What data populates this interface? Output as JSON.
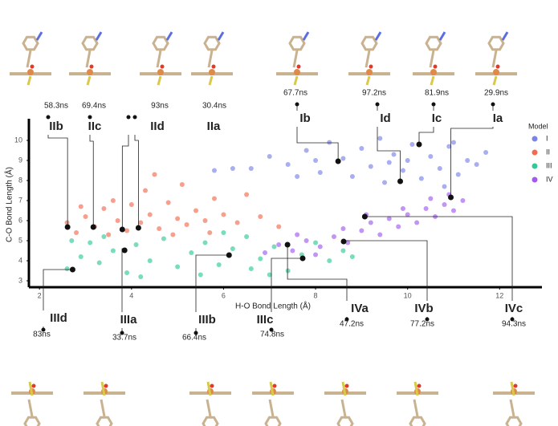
{
  "chart_data": {
    "type": "scatter",
    "x_label": "H-O Bond Length (Å)",
    "y_label": "C-O Bond Length (Å)",
    "xlim": [
      1.77,
      12.78
    ],
    "ylim": [
      2.68,
      11.08
    ],
    "xticks": [
      2,
      4,
      6,
      8,
      10,
      12
    ],
    "yticks": [
      3,
      4,
      5,
      6,
      7,
      8,
      9,
      10
    ],
    "legend_title": "Model",
    "legend_position": "upper right",
    "series": [
      {
        "name": "I",
        "color": "#7b83e8",
        "x": [
          7.0,
          7.4,
          7.8,
          8.1,
          8.3,
          8.6,
          8.8,
          9.0,
          9.2,
          9.4,
          9.5,
          9.7,
          9.9,
          10.1,
          10.3,
          10.5,
          10.7,
          10.9,
          11.1,
          11.3,
          11.5,
          11.7,
          6.6,
          7.6,
          8.0,
          9.6,
          10.0,
          10.8,
          11.0,
          5.8,
          6.2
        ],
        "y": [
          9.2,
          8.8,
          9.5,
          8.4,
          9.9,
          9.1,
          8.2,
          9.6,
          8.7,
          10.1,
          7.9,
          9.3,
          8.5,
          9.8,
          8.1,
          9.2,
          8.6,
          9.7,
          8.3,
          9.0,
          8.8,
          9.4,
          8.6,
          8.2,
          9.0,
          8.9,
          9.0,
          7.7,
          9.9,
          8.5,
          8.6
        ]
      },
      {
        "name": "II",
        "color": "#f26b50",
        "x": [
          2.6,
          2.8,
          3.0,
          3.2,
          3.4,
          3.5,
          3.7,
          3.9,
          4.0,
          4.2,
          4.4,
          4.6,
          4.8,
          5.0,
          5.2,
          5.4,
          5.6,
          5.8,
          6.0,
          6.3,
          4.3,
          5.1,
          6.8,
          7.2,
          2.9,
          3.6,
          4.9,
          5.7,
          6.5,
          4.5
        ],
        "y": [
          5.9,
          5.4,
          6.2,
          5.7,
          6.6,
          5.3,
          6.0,
          5.5,
          6.8,
          5.9,
          6.3,
          5.6,
          6.9,
          6.1,
          5.8,
          6.5,
          6.0,
          7.1,
          6.3,
          5.9,
          7.5,
          7.8,
          6.2,
          5.7,
          6.7,
          7.0,
          5.3,
          5.4,
          7.3,
          8.3
        ]
      },
      {
        "name": "III",
        "color": "#2fc99a",
        "x": [
          2.6,
          2.9,
          3.1,
          3.3,
          3.6,
          3.9,
          4.1,
          4.4,
          4.7,
          5.0,
          5.3,
          5.6,
          5.9,
          6.2,
          6.5,
          6.8,
          7.1,
          7.4,
          7.7,
          8.0,
          8.3,
          8.6,
          2.7,
          4.2,
          5.5,
          6.0,
          7.0,
          3.4,
          8.8,
          6.6
        ],
        "y": [
          3.6,
          4.2,
          4.9,
          3.9,
          4.5,
          3.4,
          4.8,
          4.0,
          5.1,
          3.7,
          4.4,
          4.9,
          3.8,
          4.6,
          5.2,
          4.1,
          4.7,
          3.5,
          4.3,
          4.9,
          4.0,
          4.5,
          5.0,
          3.2,
          3.3,
          5.4,
          3.3,
          5.2,
          4.2,
          3.6
        ]
      },
      {
        "name": "IV",
        "color": "#a25af0",
        "x": [
          6.9,
          7.2,
          7.5,
          7.8,
          8.1,
          8.4,
          8.7,
          9.0,
          9.2,
          9.4,
          9.6,
          9.8,
          10.0,
          10.2,
          10.4,
          10.6,
          10.8,
          11.0,
          11.2,
          10.5,
          9.1,
          8.6,
          7.6,
          8.0,
          9.9,
          10.9
        ],
        "y": [
          4.4,
          4.8,
          4.5,
          5.0,
          4.7,
          5.2,
          4.9,
          5.5,
          5.9,
          5.3,
          6.1,
          5.7,
          6.3,
          5.9,
          6.6,
          6.2,
          6.8,
          6.5,
          7.0,
          7.1,
          6.3,
          5.6,
          5.3,
          4.3,
          6.6,
          7.3
        ]
      }
    ],
    "annotations": [
      {
        "label": "IIb",
        "time": "58.3ns",
        "x": 2.61,
        "y": 5.68
      },
      {
        "label": "IIc",
        "time": "69.4ns",
        "x": 3.17,
        "y": 5.68
      },
      {
        "label": "IId",
        "time": "93ns",
        "x": 3.8,
        "y": 5.56
      },
      {
        "label": "IIa",
        "time": "30.4ns",
        "x": 4.15,
        "y": 5.64
      },
      {
        "label": "Ib",
        "time": "67.7ns",
        "x": 8.49,
        "y": 8.96
      },
      {
        "label": "Id",
        "time": "97.2ns",
        "x": 9.84,
        "y": 7.96
      },
      {
        "label": "Ic",
        "time": "81.9ns",
        "x": 10.25,
        "y": 9.8
      },
      {
        "label": "Ia",
        "time": "29.9ns",
        "x": 10.94,
        "y": 7.16
      },
      {
        "label": "IIId",
        "time": "83ns",
        "x": 2.72,
        "y": 3.56
      },
      {
        "label": "IIIa",
        "time": "33.7ns",
        "x": 3.85,
        "y": 4.52
      },
      {
        "label": "IIIb",
        "time": "66.4ns",
        "x": 6.12,
        "y": 4.28
      },
      {
        "label": "IIIc",
        "time": "74.8ns",
        "x": 7.72,
        "y": 4.12
      },
      {
        "label": "IVa",
        "time": "47.2ns",
        "x": 7.39,
        "y": 4.8
      },
      {
        "label": "IVb",
        "time": "77.2ns",
        "x": 8.61,
        "y": 4.96
      },
      {
        "label": "IVc",
        "time": "94.3ns",
        "x": 9.07,
        "y": 6.2
      }
    ]
  }
}
